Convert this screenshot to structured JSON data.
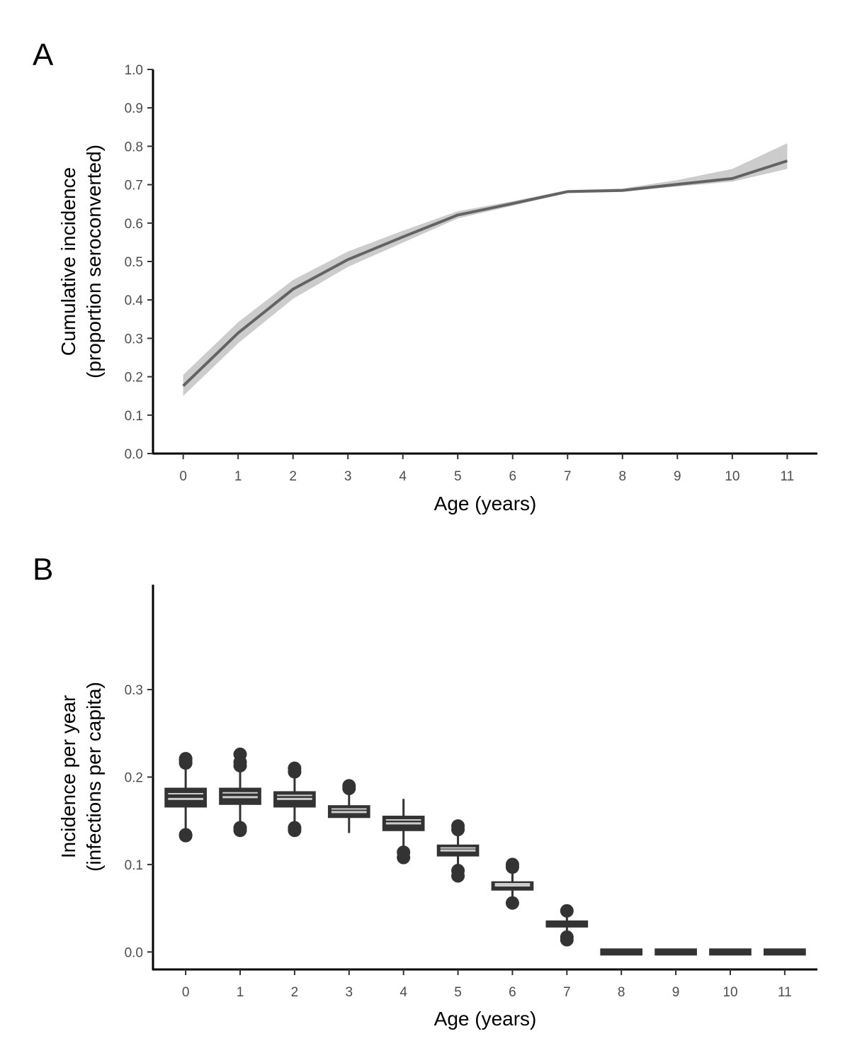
{
  "chart_data": [
    {
      "type": "line",
      "panel_label": "A",
      "xlabel": "Age (years)",
      "ylabel_lines": [
        "Cumulative incidence",
        "(proportion seroconverted)"
      ],
      "x": [
        0,
        1,
        2,
        3,
        4,
        5,
        6,
        7,
        8,
        9,
        10,
        11
      ],
      "xlim": [
        -0.55,
        11.55
      ],
      "ylim": [
        0,
        1.0
      ],
      "x_ticks": [
        "0",
        "1",
        "2",
        "3",
        "4",
        "5",
        "6",
        "7",
        "8",
        "9",
        "10",
        "11"
      ],
      "y_ticks": [
        "0.0",
        "0.1",
        "0.2",
        "0.3",
        "0.4",
        "0.5",
        "0.6",
        "0.7",
        "0.8",
        "0.9",
        "1.0"
      ],
      "y_tick_values": [
        0,
        0.1,
        0.2,
        0.3,
        0.4,
        0.5,
        0.6,
        0.7,
        0.8,
        0.9,
        1.0
      ],
      "series": [
        {
          "values": [
            0.176,
            0.314,
            0.428,
            0.505,
            0.564,
            0.621,
            0.651,
            0.682,
            0.685,
            0.701,
            0.716,
            0.762
          ],
          "lower": [
            0.15,
            0.287,
            0.403,
            0.486,
            0.549,
            0.612,
            0.645,
            0.679,
            0.682,
            0.695,
            0.708,
            0.741
          ],
          "upper": [
            0.205,
            0.342,
            0.452,
            0.526,
            0.58,
            0.631,
            0.657,
            0.686,
            0.69,
            0.712,
            0.741,
            0.808
          ]
        }
      ],
      "grid": false,
      "colors": {
        "line": "#636363",
        "band": "#cccccc"
      }
    },
    {
      "type": "box",
      "panel_label": "B",
      "xlabel": "Age (years)",
      "ylabel_lines": [
        "Incidence per year",
        "(infections per capita)"
      ],
      "categories": [
        "0",
        "1",
        "2",
        "3",
        "4",
        "5",
        "6",
        "7",
        "8",
        "9",
        "10",
        "11"
      ],
      "ylim": [
        -0.02,
        0.42
      ],
      "y_ticks": [
        "0.0",
        "0.1",
        "0.2",
        "0.3"
      ],
      "y_tick_values": [
        0,
        0.1,
        0.2,
        0.3
      ],
      "boxes": [
        {
          "q1": 0.166,
          "median": 0.175,
          "q3": 0.187,
          "whisker_low": 0.138,
          "whisker_high": 0.212,
          "outliers": [
            0.133,
            0.134,
            0.216,
            0.219,
            0.221
          ]
        },
        {
          "q1": 0.169,
          "median": 0.177,
          "q3": 0.187,
          "whisker_low": 0.146,
          "whisker_high": 0.21,
          "outliers": [
            0.139,
            0.142,
            0.213,
            0.217,
            0.226
          ]
        },
        {
          "q1": 0.166,
          "median": 0.175,
          "q3": 0.183,
          "whisker_low": 0.146,
          "whisker_high": 0.203,
          "outliers": [
            0.139,
            0.142,
            0.206,
            0.21
          ]
        },
        {
          "q1": 0.154,
          "median": 0.16,
          "q3": 0.167,
          "whisker_low": 0.136,
          "whisker_high": 0.184,
          "outliers": [
            0.187,
            0.19
          ]
        },
        {
          "q1": 0.139,
          "median": 0.147,
          "q3": 0.155,
          "whisker_low": 0.118,
          "whisker_high": 0.175,
          "outliers": [
            0.108,
            0.114
          ]
        },
        {
          "q1": 0.11,
          "median": 0.116,
          "q3": 0.122,
          "whisker_low": 0.097,
          "whisker_high": 0.136,
          "outliers": [
            0.087,
            0.093,
            0.14,
            0.144
          ]
        },
        {
          "q1": 0.071,
          "median": 0.076,
          "q3": 0.08,
          "whisker_low": 0.062,
          "whisker_high": 0.092,
          "outliers": [
            0.056,
            0.097,
            0.1
          ]
        },
        {
          "q1": 0.029,
          "median": 0.032,
          "q3": 0.035,
          "whisker_low": 0.022,
          "whisker_high": 0.042,
          "outliers": [
            0.014,
            0.017,
            0.047
          ]
        },
        {
          "q1": 0.0,
          "median": 0.0,
          "q3": 0.0,
          "whisker_low": 0.0,
          "whisker_high": 0.0,
          "outliers": []
        },
        {
          "q1": 0.0,
          "median": 0.0,
          "q3": 0.0,
          "whisker_low": 0.0,
          "whisker_high": 0.0,
          "outliers": []
        },
        {
          "q1": 0.0,
          "median": 0.0,
          "q3": 0.0,
          "whisker_low": 0.0,
          "whisker_high": 0.0,
          "outliers": []
        },
        {
          "q1": 0.0,
          "median": 0.0,
          "q3": 0.0,
          "whisker_low": 0.0,
          "whisker_high": 0.0,
          "outliers": []
        }
      ],
      "grid": false,
      "colors": {
        "box_fill": "#333333",
        "median": "#cccccc",
        "outline": "#333333"
      }
    }
  ]
}
